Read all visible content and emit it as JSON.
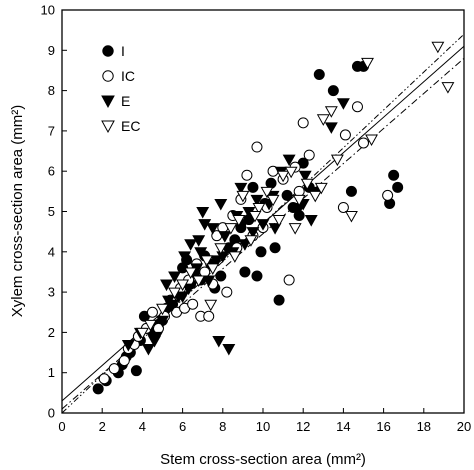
{
  "chart_data": {
    "type": "scatter",
    "xlabel": "Stem cross-section area (mm²)",
    "ylabel": "Xylem cross-section area (mm²)",
    "xlim": [
      0,
      20
    ],
    "ylim": [
      0,
      10
    ],
    "xticks": [
      0,
      2,
      4,
      6,
      8,
      10,
      12,
      14,
      16,
      18,
      20
    ],
    "yticks": [
      0,
      1,
      2,
      3,
      4,
      5,
      6,
      7,
      8,
      9,
      10
    ],
    "grid": false,
    "legend_position": "top-left",
    "series": [
      {
        "name": "I",
        "marker": "circle-filled",
        "points": [
          [
            1.8,
            0.6
          ],
          [
            2.2,
            0.8
          ],
          [
            2.8,
            1.0
          ],
          [
            3.0,
            1.2
          ],
          [
            3.2,
            1.4
          ],
          [
            3.4,
            1.5
          ],
          [
            3.7,
            1.05
          ],
          [
            3.9,
            1.8
          ],
          [
            4.1,
            2.4
          ],
          [
            4.5,
            2.0
          ],
          [
            4.8,
            2.2
          ],
          [
            5.0,
            2.3
          ],
          [
            5.2,
            2.6
          ],
          [
            5.5,
            2.7
          ],
          [
            5.8,
            3.0
          ],
          [
            6.0,
            3.6
          ],
          [
            6.2,
            3.8
          ],
          [
            6.4,
            3.2
          ],
          [
            6.6,
            3.5
          ],
          [
            6.9,
            3.3
          ],
          [
            7.1,
            3.9
          ],
          [
            7.4,
            3.7
          ],
          [
            7.6,
            3.1
          ],
          [
            7.9,
            3.4
          ],
          [
            8.3,
            4.1
          ],
          [
            8.6,
            4.3
          ],
          [
            8.9,
            4.6
          ],
          [
            9.1,
            3.5
          ],
          [
            9.3,
            4.8
          ],
          [
            9.5,
            5.6
          ],
          [
            9.7,
            3.4
          ],
          [
            9.9,
            4.0
          ],
          [
            10.1,
            5.2
          ],
          [
            10.4,
            5.7
          ],
          [
            10.6,
            4.1
          ],
          [
            10.8,
            2.8
          ],
          [
            11.2,
            5.4
          ],
          [
            11.5,
            5.1
          ],
          [
            11.8,
            4.9
          ],
          [
            12.0,
            6.2
          ],
          [
            12.3,
            5.6
          ],
          [
            12.8,
            8.4
          ],
          [
            13.5,
            8.0
          ],
          [
            14.4,
            5.5
          ],
          [
            14.7,
            8.6
          ],
          [
            15.0,
            8.6
          ],
          [
            16.3,
            5.2
          ],
          [
            16.5,
            5.9
          ],
          [
            16.7,
            5.6
          ]
        ]
      },
      {
        "name": "IC",
        "marker": "circle-open",
        "points": [
          [
            2.1,
            0.85
          ],
          [
            2.6,
            1.1
          ],
          [
            3.1,
            1.3
          ],
          [
            3.3,
            1.6
          ],
          [
            3.6,
            1.7
          ],
          [
            3.8,
            1.9
          ],
          [
            4.2,
            2.1
          ],
          [
            4.5,
            2.5
          ],
          [
            4.8,
            2.1
          ],
          [
            5.1,
            2.4
          ],
          [
            5.4,
            2.8
          ],
          [
            5.7,
            2.5
          ],
          [
            5.9,
            3.1
          ],
          [
            6.1,
            2.6
          ],
          [
            6.3,
            3.3
          ],
          [
            6.5,
            2.7
          ],
          [
            6.7,
            3.7
          ],
          [
            6.9,
            2.4
          ],
          [
            7.1,
            3.5
          ],
          [
            7.3,
            2.4
          ],
          [
            7.5,
            3.2
          ],
          [
            7.7,
            4.4
          ],
          [
            8.0,
            4.6
          ],
          [
            8.2,
            3.0
          ],
          [
            8.5,
            4.9
          ],
          [
            8.7,
            4.1
          ],
          [
            8.9,
            5.3
          ],
          [
            9.2,
            5.9
          ],
          [
            9.5,
            4.4
          ],
          [
            9.7,
            6.6
          ],
          [
            10.0,
            4.6
          ],
          [
            10.2,
            5.1
          ],
          [
            10.5,
            6.0
          ],
          [
            11.0,
            5.8
          ],
          [
            11.3,
            3.3
          ],
          [
            11.6,
            6.1
          ],
          [
            11.8,
            5.5
          ],
          [
            12.0,
            7.2
          ],
          [
            12.3,
            6.4
          ],
          [
            14.0,
            5.1
          ],
          [
            14.1,
            6.9
          ],
          [
            14.7,
            7.6
          ],
          [
            15.0,
            6.7
          ],
          [
            16.2,
            5.4
          ]
        ]
      },
      {
        "name": "E",
        "marker": "triangle-down-filled",
        "points": [
          [
            3.3,
            1.7
          ],
          [
            3.9,
            2.0
          ],
          [
            4.3,
            1.6
          ],
          [
            4.7,
            1.9
          ],
          [
            5.0,
            2.3
          ],
          [
            5.3,
            2.8
          ],
          [
            5.6,
            3.4
          ],
          [
            5.8,
            2.9
          ],
          [
            6.1,
            3.9
          ],
          [
            6.3,
            3.1
          ],
          [
            6.4,
            4.2
          ],
          [
            6.7,
            3.6
          ],
          [
            6.9,
            4.0
          ],
          [
            7.1,
            4.7
          ],
          [
            7.3,
            3.3
          ],
          [
            7.5,
            4.6
          ],
          [
            7.7,
            3.8
          ],
          [
            7.9,
            5.2
          ],
          [
            8.1,
            4.4
          ],
          [
            8.3,
            1.6
          ],
          [
            8.5,
            4.0
          ],
          [
            8.7,
            4.9
          ],
          [
            8.9,
            5.6
          ],
          [
            9.1,
            4.2
          ],
          [
            9.3,
            5.0
          ],
          [
            9.5,
            4.5
          ],
          [
            9.7,
            5.3
          ],
          [
            10.0,
            4.7
          ],
          [
            10.3,
            5.2
          ],
          [
            10.6,
            4.6
          ],
          [
            10.9,
            6.0
          ],
          [
            11.3,
            6.3
          ],
          [
            11.8,
            5.1
          ],
          [
            12.1,
            5.9
          ],
          [
            12.4,
            4.8
          ],
          [
            12.7,
            5.5
          ],
          [
            13.4,
            7.1
          ],
          [
            14.0,
            7.7
          ],
          [
            5.2,
            3.2
          ],
          [
            6.8,
            4.3
          ],
          [
            7.8,
            1.8
          ],
          [
            4.6,
            1.8
          ],
          [
            5.5,
            2.7
          ],
          [
            6.0,
            2.9
          ],
          [
            7.0,
            5.0
          ],
          [
            8.0,
            3.9
          ],
          [
            9.0,
            4.7
          ],
          [
            10.5,
            5.4
          ],
          [
            12.0,
            5.2
          ]
        ]
      },
      {
        "name": "EC",
        "marker": "triangle-down-open",
        "points": [
          [
            4.0,
            2.0
          ],
          [
            4.4,
            2.2
          ],
          [
            5.0,
            2.6
          ],
          [
            5.6,
            3.0
          ],
          [
            6.0,
            3.2
          ],
          [
            6.4,
            3.5
          ],
          [
            6.8,
            3.3
          ],
          [
            7.2,
            3.8
          ],
          [
            7.5,
            3.6
          ],
          [
            7.9,
            4.1
          ],
          [
            8.4,
            4.6
          ],
          [
            8.8,
            4.8
          ],
          [
            9.0,
            5.4
          ],
          [
            9.4,
            4.3
          ],
          [
            9.8,
            5.1
          ],
          [
            10.2,
            5.5
          ],
          [
            10.5,
            5.3
          ],
          [
            11.0,
            5.9
          ],
          [
            11.4,
            6.0
          ],
          [
            11.8,
            5.3
          ],
          [
            12.2,
            5.7
          ],
          [
            12.6,
            5.4
          ],
          [
            13.0,
            7.3
          ],
          [
            13.4,
            7.5
          ],
          [
            13.7,
            6.3
          ],
          [
            14.4,
            4.9
          ],
          [
            15.2,
            8.7
          ],
          [
            15.4,
            6.8
          ],
          [
            18.7,
            9.1
          ],
          [
            19.2,
            8.1
          ],
          [
            9.6,
            4.9
          ],
          [
            10.8,
            4.8
          ],
          [
            11.6,
            4.6
          ],
          [
            12.9,
            5.6
          ],
          [
            8.6,
            3.9
          ],
          [
            7.4,
            2.7
          ]
        ]
      }
    ],
    "fit_lines": [
      {
        "style": "solid",
        "y_at_xmin": 0.3,
        "y_at_xmax": 9.1
      },
      {
        "style": "dash-dot",
        "y_at_xmin": 0.1,
        "y_at_xmax": 8.8
      },
      {
        "style": "dash-dot-dot",
        "y_at_xmin": 0.0,
        "y_at_xmax": 9.4
      }
    ]
  }
}
